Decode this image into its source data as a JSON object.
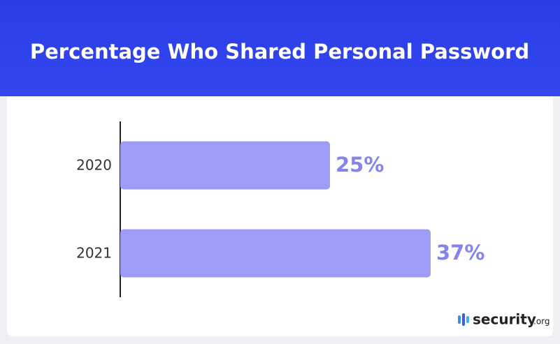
{
  "chart_data": {
    "type": "bar",
    "orientation": "horizontal",
    "title": "Percentage Who Shared Personal Password",
    "categories": [
      "2020",
      "2021"
    ],
    "values": [
      25,
      37
    ],
    "value_labels": [
      "25%",
      "37%"
    ],
    "color": "#9d9cf6",
    "xlim": [
      0,
      50
    ],
    "logo": "security",
    "logo_suffix": ".org"
  }
}
